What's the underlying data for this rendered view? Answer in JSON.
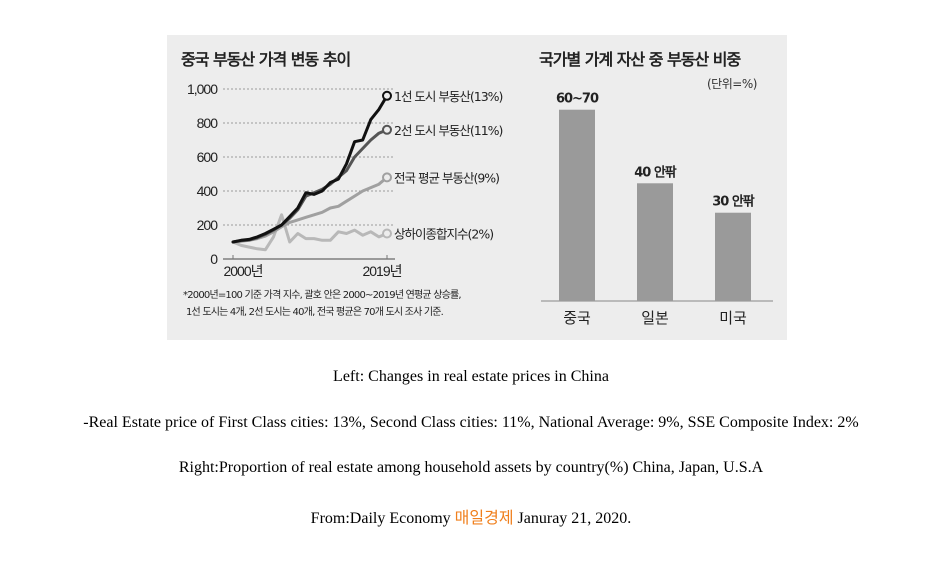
{
  "figure": {
    "left_title": "중국 부동산 가격 변동 추이",
    "right_title": "국가별 가계 자산 중 부동산 비중",
    "right_unit": "(단위=%)",
    "footnote_lines": [
      "*2000년=100 기준 가격 지수, 괄호 안은 2000~2019년 연평균 상승률,",
      "1선 도시는 4개, 2선 도시는 40개, 전국 평균은 70개 도시 조사 기준."
    ]
  },
  "chart_data": [
    {
      "type": "line",
      "title": "중국 부동산 가격 변동 추이",
      "xlabel": "",
      "ylabel": "",
      "x": [
        2000,
        2001,
        2002,
        2003,
        2004,
        2005,
        2006,
        2007,
        2008,
        2009,
        2010,
        2011,
        2012,
        2013,
        2014,
        2015,
        2016,
        2017,
        2018,
        2019
      ],
      "x_tick_labels": [
        "2000년",
        "2019년"
      ],
      "x_tick_values": [
        2000,
        2019
      ],
      "ylim": [
        0,
        1000
      ],
      "y_ticks": [
        0,
        200,
        400,
        600,
        800,
        1000
      ],
      "y_tick_labels": [
        "0",
        "200",
        "400",
        "600",
        "800",
        "1,000"
      ],
      "grid": true,
      "series": [
        {
          "name": "1선 도시 부동산(13%)",
          "color": "#111111",
          "values": [
            100,
            110,
            115,
            130,
            150,
            175,
            200,
            250,
            300,
            390,
            380,
            400,
            450,
            470,
            560,
            690,
            700,
            820,
            880,
            960
          ]
        },
        {
          "name": "2선 도시 부동산(11%)",
          "color": "#555555",
          "values": [
            100,
            108,
            112,
            125,
            145,
            170,
            200,
            240,
            290,
            370,
            390,
            410,
            440,
            480,
            520,
            600,
            650,
            700,
            740,
            760
          ]
        },
        {
          "name": "전국 평균 부동산(9%)",
          "color": "#a0a0a0",
          "values": [
            100,
            105,
            110,
            120,
            135,
            160,
            190,
            215,
            230,
            245,
            260,
            275,
            300,
            310,
            340,
            370,
            400,
            420,
            440,
            480
          ]
        },
        {
          "name": "상하이종합지수(2%)",
          "color": "#b8b8b8",
          "values": [
            100,
            80,
            70,
            60,
            55,
            130,
            260,
            100,
            150,
            120,
            120,
            110,
            110,
            160,
            150,
            170,
            140,
            160,
            130,
            150
          ]
        }
      ]
    },
    {
      "type": "bar",
      "title": "국가별 가계 자산 중 부동산 비중",
      "unit": "(단위=%)",
      "categories": [
        "중국",
        "일본",
        "미국"
      ],
      "values": [
        65,
        40,
        30
      ],
      "value_labels": [
        "60~70",
        "40 안팎",
        "30 안팎"
      ],
      "color": "#9a9a9a",
      "ylim": [
        0,
        70
      ]
    }
  ],
  "captions": {
    "line1": "Left: Changes in real estate prices in China",
    "line2": "-Real Estate price of First Class cities: 13%, Second Class cities: 11%, National Average: 9%, SSE Composite Index: 2%",
    "line3": "Right:Proportion of real estate among household assets by country(%) China, Japan, U.S.A",
    "line4_prefix": "From:Daily Economy",
    "line4_korean": "매일경제",
    "line4_suffix": "Januray 21, 2020.",
    "accent_color": "#f07f1c"
  }
}
